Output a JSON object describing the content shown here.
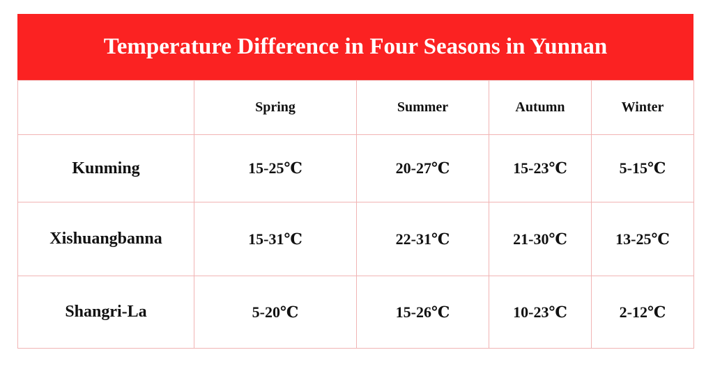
{
  "header": {
    "title": "Temperature Difference in Four Seasons in Yunnan"
  },
  "table": {
    "columns": [
      "Spring",
      "Summer",
      "Autumn",
      "Winter"
    ],
    "rows": [
      {
        "label": "Kunming",
        "cells": [
          "15-25℃",
          "20-27℃",
          "15-23℃",
          "5-15℃"
        ]
      },
      {
        "label": "Xishuangbanna",
        "cells": [
          "15-31℃",
          "22-31℃",
          "21-30℃",
          "13-25℃"
        ]
      },
      {
        "label": "Shangri-La",
        "cells": [
          "5-20℃",
          "15-26℃",
          "10-23℃",
          "2-12℃"
        ]
      }
    ]
  }
}
